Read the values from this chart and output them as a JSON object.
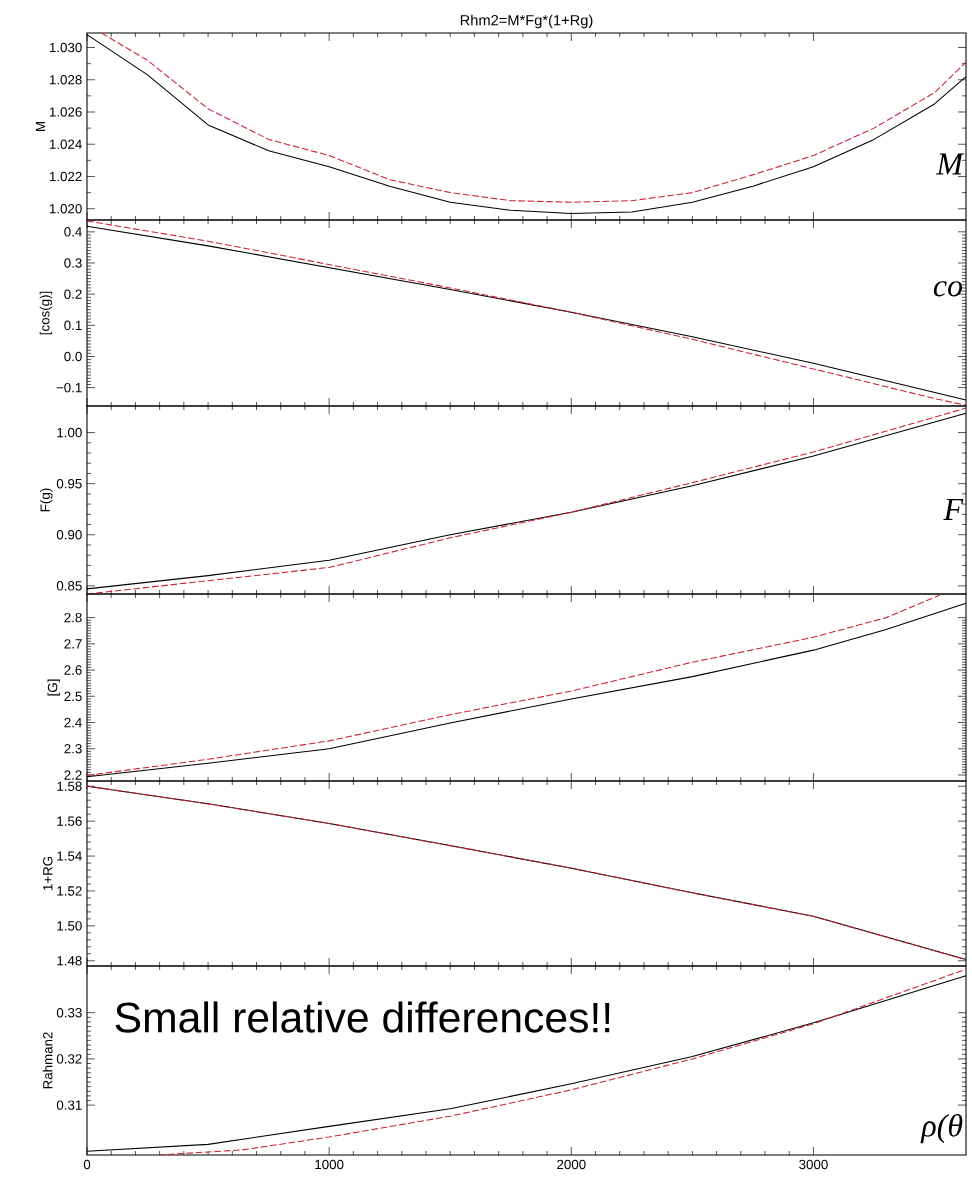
{
  "chart_data": [
    {
      "type": "line",
      "title": "Rhm2=M*Fg*(1+Rg)",
      "ylabel": "M",
      "xlim": [
        0,
        3630
      ],
      "ylim": [
        1.0193,
        1.0309
      ],
      "xticks": [
        0,
        1000,
        2000,
        3000
      ],
      "yticks": [
        {
          "value": 1.02,
          "label": "1.020"
        },
        {
          "value": 1.022,
          "label": "1.022"
        },
        {
          "value": 1.024,
          "label": "1.024"
        },
        {
          "value": 1.026,
          "label": "1.026"
        },
        {
          "value": 1.028,
          "label": "1.028"
        },
        {
          "value": 1.03,
          "label": "1.030"
        }
      ],
      "tick_labels": "y",
      "annotations": [
        "M"
      ],
      "series": [
        {
          "color": "#000000",
          "line_style": "solid",
          "x": [
            0,
            250,
            500,
            750,
            1000,
            1250,
            1500,
            1750,
            2000,
            2250,
            2500,
            2750,
            3000,
            3250,
            3500,
            3630
          ],
          "values": [
            1.0308,
            1.0283,
            1.0252,
            1.0236,
            1.0226,
            1.0214,
            1.0204,
            1.0199,
            1.0197,
            1.0198,
            1.0204,
            1.0214,
            1.0226,
            1.0243,
            1.0265,
            1.0282
          ]
        },
        {
          "color": "#cc2233",
          "line_style": "dashed",
          "x": [
            60,
            250,
            500,
            750,
            1000,
            1250,
            1500,
            1750,
            2000,
            2250,
            2500,
            2750,
            3000,
            3250,
            3500,
            3630
          ],
          "values": [
            1.0309,
            1.0292,
            1.0262,
            1.0243,
            1.0233,
            1.0218,
            1.021,
            1.0205,
            1.0204,
            1.0205,
            1.021,
            1.0221,
            1.0233,
            1.025,
            1.0272,
            1.0291
          ]
        }
      ]
    },
    {
      "type": "line",
      "ylabel": "[cos(g)]",
      "xlim": [
        0,
        3630
      ],
      "ylim": [
        -0.159,
        0.438
      ],
      "xticks": [
        0,
        1000,
        2000,
        3000
      ],
      "yticks": [
        {
          "value": -0.1,
          "label": "−0.1"
        },
        {
          "value": 0,
          "label": "0.0"
        },
        0.1,
        0.2,
        0.3,
        0.4
      ],
      "tick_labels": "y",
      "annotations": [
        "co"
      ],
      "series": [
        {
          "color": "#000000",
          "line_style": "solid",
          "x": [
            0,
            500,
            1000,
            1500,
            2000,
            2500,
            3000,
            3630
          ],
          "values": [
            0.418,
            0.355,
            0.285,
            0.215,
            0.142,
            0.063,
            -0.022,
            -0.14
          ]
        },
        {
          "color": "#cc2233",
          "line_style": "dashed",
          "x": [
            0,
            500,
            1000,
            1500,
            2000,
            2500,
            3000,
            3500,
            3630
          ],
          "values": [
            0.435,
            0.37,
            0.295,
            0.22,
            0.142,
            0.055,
            -0.04,
            -0.135,
            -0.157
          ]
        }
      ]
    },
    {
      "type": "line",
      "ylabel": "F(g)",
      "xlim": [
        0,
        3630
      ],
      "ylim": [
        0.842,
        1.026
      ],
      "xticks": [
        0,
        1000,
        2000,
        3000
      ],
      "yticks": [
        0.85,
        {
          "value": 0.9,
          "label": "0.90"
        },
        0.95,
        {
          "value": 1,
          "label": "1.00"
        }
      ],
      "tick_labels": "y",
      "annotations": [
        "F"
      ],
      "series": [
        {
          "color": "#000000",
          "line_style": "solid",
          "x": [
            0,
            500,
            1000,
            1500,
            2000,
            2500,
            3000,
            3630
          ],
          "values": [
            0.847,
            0.86,
            0.875,
            0.9,
            0.922,
            0.948,
            0.977,
            1.019
          ]
        },
        {
          "color": "#cc2233",
          "line_style": "dashed",
          "x": [
            0,
            500,
            1000,
            1500,
            2000,
            2500,
            3000,
            3500,
            3630
          ],
          "values": [
            0.842,
            0.855,
            0.868,
            0.897,
            0.922,
            0.951,
            0.981,
            1.015,
            1.024
          ]
        }
      ]
    },
    {
      "type": "line",
      "ylabel": "[G]",
      "xlim": [
        0,
        3630
      ],
      "ylim": [
        2.177,
        2.89
      ],
      "xticks": [
        0,
        1000,
        2000,
        3000
      ],
      "yticks": [
        2.2,
        2.3,
        2.4,
        2.5,
        2.6,
        2.7,
        2.8
      ],
      "tick_labels": "y",
      "series": [
        {
          "color": "#000000",
          "line_style": "solid",
          "x": [
            0,
            500,
            1000,
            1500,
            2000,
            2500,
            3000,
            3300,
            3630
          ],
          "values": [
            2.193,
            2.245,
            2.3,
            2.398,
            2.49,
            2.575,
            2.676,
            2.755,
            2.855
          ]
        },
        {
          "color": "#cc2233",
          "line_style": "dashed",
          "x": [
            0,
            500,
            1000,
            1500,
            2000,
            2500,
            3000,
            3300,
            3520
          ],
          "values": [
            2.198,
            2.26,
            2.33,
            2.43,
            2.52,
            2.63,
            2.725,
            2.8,
            2.885
          ]
        }
      ]
    },
    {
      "type": "line",
      "ylabel": "1+RG",
      "xlim": [
        0,
        3630
      ],
      "ylim": [
        1.477,
        1.583
      ],
      "xticks": [
        0,
        1000,
        2000,
        3000
      ],
      "yticks": [
        1.48,
        {
          "value": 1.5,
          "label": "1.50"
        },
        1.52,
        1.54,
        1.56,
        1.58
      ],
      "tick_labels": "y",
      "series": [
        {
          "color": "#000000",
          "line_style": "solid",
          "x": [
            0,
            500,
            1000,
            1500,
            2000,
            2500,
            3000,
            3630
          ],
          "values": [
            1.58,
            1.57,
            1.5586,
            1.546,
            1.533,
            1.519,
            1.5055,
            1.4807
          ]
        },
        {
          "color": "#cc2233",
          "line_style": "dashed",
          "x": [
            0,
            500,
            1000,
            1500,
            2000,
            2500,
            3000,
            3630
          ],
          "values": [
            1.5801,
            1.5699,
            1.5587,
            1.5459,
            1.5331,
            1.5189,
            1.5054,
            1.4806
          ]
        }
      ]
    },
    {
      "type": "line",
      "ylabel": "Rahman2",
      "xlim": [
        0,
        3630
      ],
      "ylim": [
        0.2992,
        0.3401
      ],
      "xticks": [
        0,
        1000,
        2000,
        3000
      ],
      "yticks": [
        0.31,
        0.32,
        0.33
      ],
      "annotations": [
        "Small relative differences!!",
        "ρ(θ"
      ],
      "series": [
        {
          "color": "#000000",
          "line_style": "solid",
          "x": [
            0,
            500,
            1000,
            1500,
            2000,
            2500,
            3000,
            3630
          ],
          "values": [
            0.3,
            0.3015,
            0.3054,
            0.3092,
            0.3146,
            0.3205,
            0.3278,
            0.338
          ]
        },
        {
          "color": "#cc2233",
          "line_style": "dashed",
          "x": [
            295,
            640,
            1000,
            1500,
            2000,
            2500,
            3000,
            3630
          ],
          "values": [
            0.2992,
            0.3003,
            0.3031,
            0.3076,
            0.3133,
            0.32,
            0.3276,
            0.3394
          ]
        }
      ]
    }
  ]
}
